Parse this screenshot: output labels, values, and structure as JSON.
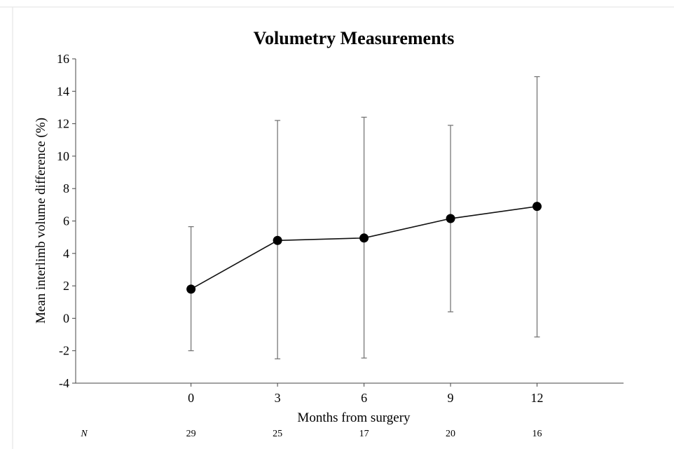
{
  "chart_data": {
    "type": "line",
    "title": "Volumetry Measurements",
    "xlabel": "Months from surgery",
    "ylabel": "Mean interlimb volume difference (%)",
    "ylim": [
      -4,
      16
    ],
    "xlim": [
      -4,
      15
    ],
    "yticks": [
      -4,
      -2,
      0,
      2,
      4,
      6,
      8,
      10,
      12,
      14,
      16
    ],
    "x": [
      0,
      3,
      6,
      9,
      12
    ],
    "x_tick_labels": [
      "0",
      "3",
      "6",
      "9",
      "12"
    ],
    "series": [
      {
        "values": [
          1.8,
          4.8,
          4.95,
          6.15,
          6.9
        ],
        "error_low": [
          -2.0,
          -2.5,
          -2.45,
          0.4,
          -1.15
        ],
        "error_high": [
          5.65,
          12.2,
          12.4,
          11.9,
          14.9
        ]
      }
    ],
    "n_label": "N",
    "n_values": [
      "29",
      "25",
      "17",
      "20",
      "16"
    ],
    "grid": false,
    "legend": "none"
  },
  "colors": {
    "line": "#111111",
    "marker": "#000000",
    "error_bar": "#6e6e6e",
    "axis": "#444444",
    "border": "#e2e2e2"
  }
}
